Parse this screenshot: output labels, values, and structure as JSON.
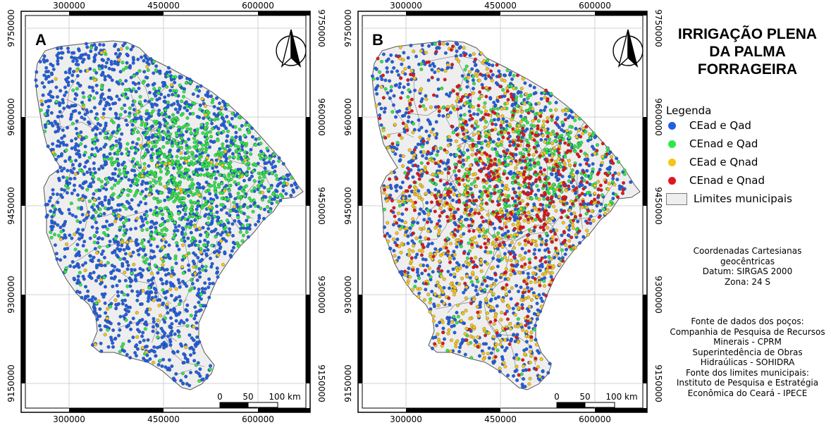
{
  "panels": [
    {
      "label": "A",
      "points": [
        {
          "category": "CEad e Qad",
          "count": 1900
        },
        {
          "category": "CEnad e Qad",
          "count": 850
        },
        {
          "category": "CEad e Qnad",
          "count": 110
        },
        {
          "category": "CEnad e Qnad",
          "count": 0
        }
      ]
    },
    {
      "label": "B",
      "points": [
        {
          "category": "CEad e Qad",
          "count": 1150
        },
        {
          "category": "CEnad e Qad",
          "count": 520
        },
        {
          "category": "CEad e Qnad",
          "count": 750
        },
        {
          "category": "CEnad e Qnad",
          "count": 560
        }
      ]
    }
  ],
  "axes": {
    "x_ticks": [
      "300000",
      "450000",
      "600000"
    ],
    "y_ticks": [
      "9750000",
      "9600000",
      "9450000",
      "9300000",
      "9150000"
    ]
  },
  "scale_bar": {
    "labels": [
      "0",
      "50",
      "100 km"
    ]
  },
  "north_arrow": {
    "icon": "north-arrow-icon"
  },
  "legend": {
    "title_lines": [
      "IRRIGAÇÃO PLENA",
      "DA PALMA",
      "FORRAGEIRA"
    ],
    "heading": "Legenda",
    "items": [
      {
        "label": "CEad e Qad",
        "color": "#1f5fe6"
      },
      {
        "label": "CEnad e Qad",
        "color": "#2ee84a"
      },
      {
        "label": "CEad e Qnad",
        "color": "#f5c518"
      },
      {
        "label": "CEnad e Qnad",
        "color": "#e3141f"
      }
    ],
    "boundary_label": "Limites municipais",
    "boundary_color": "#eeeeee"
  },
  "coordinates_info": [
    "Coordenadas Cartesianas",
    "geocêntricas",
    "Datum: SIRGAS 2000",
    "Zona: 24 S"
  ],
  "sources_info": [
    "Fonte de dados dos poços:",
    "Companhia de Pesquisa de Recursos",
    "Minerais - CPRM",
    "Superintedência de Obras",
    "Hidraúlicas - SOHIDRA",
    "Fonte dos limites municipais:",
    "Instituto de Pesquisa e Estratégia",
    "Econômica do Ceará - IPECE"
  ]
}
